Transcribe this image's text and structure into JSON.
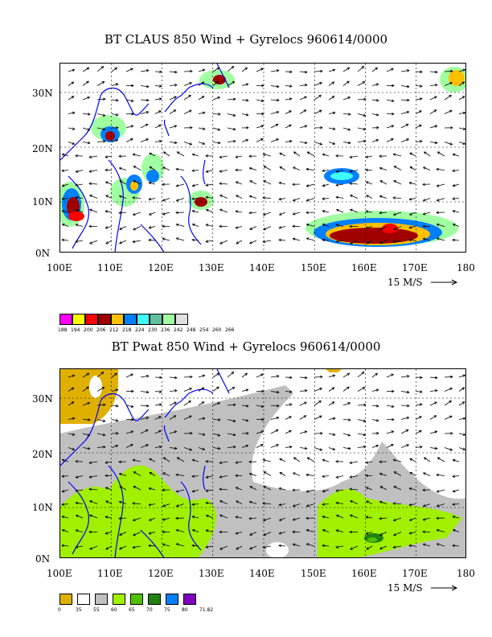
{
  "top": {
    "title": "BT CLAUS 850 Wind + Gyrelocs 960614/0000",
    "colorbar": [
      {
        "label": "188",
        "color": "#ff00ff"
      },
      {
        "label": "194",
        "color": "#ffff00"
      },
      {
        "label": "200",
        "color": "#ff0000"
      },
      {
        "label": "206",
        "color": "#a00000"
      },
      {
        "label": "212",
        "color": "#ffc000"
      },
      {
        "label": "218",
        "color": "#0080ff"
      },
      {
        "label": "224",
        "color": "#40ffff"
      },
      {
        "label": "230",
        "color": "#60c0a0"
      },
      {
        "label": "236",
        "color": "#a0ffa0"
      },
      {
        "label": "242",
        "color": "#e0e0e0"
      },
      {
        "label": "248",
        "color": ""
      },
      {
        "label": "254",
        "color": ""
      },
      {
        "label": "260",
        "color": ""
      },
      {
        "label": "266",
        "color": ""
      }
    ]
  },
  "bottom": {
    "title": "BT Pwat 850 Wind + Gyrelocs 960614/0000",
    "colorbar": [
      {
        "label": "0",
        "color": "#e0b000"
      },
      {
        "label": "35",
        "color": "#ffffff"
      },
      {
        "label": "55",
        "color": "#c0c0c0"
      },
      {
        "label": "60",
        "color": "#a0f000"
      },
      {
        "label": "65",
        "color": "#50c000"
      },
      {
        "label": "70",
        "color": "#208010"
      },
      {
        "label": "75",
        "color": "#0080ff"
      },
      {
        "label": "80",
        "color": "#8000c0"
      },
      {
        "label": "71.82",
        "color": ""
      }
    ]
  },
  "axes": {
    "x_ticks": [
      "100E",
      "110E",
      "120E",
      "130E",
      "140E",
      "150E",
      "160E",
      "170E",
      "180"
    ],
    "y_ticks": [
      "0N",
      "10N",
      "20N",
      "30N"
    ],
    "wind_scale": "15 M/S"
  },
  "colors": {
    "coast": "#0000ff",
    "grid": "#000000"
  },
  "icons": {
    "scale_arrow": "arrow-right-icon"
  }
}
